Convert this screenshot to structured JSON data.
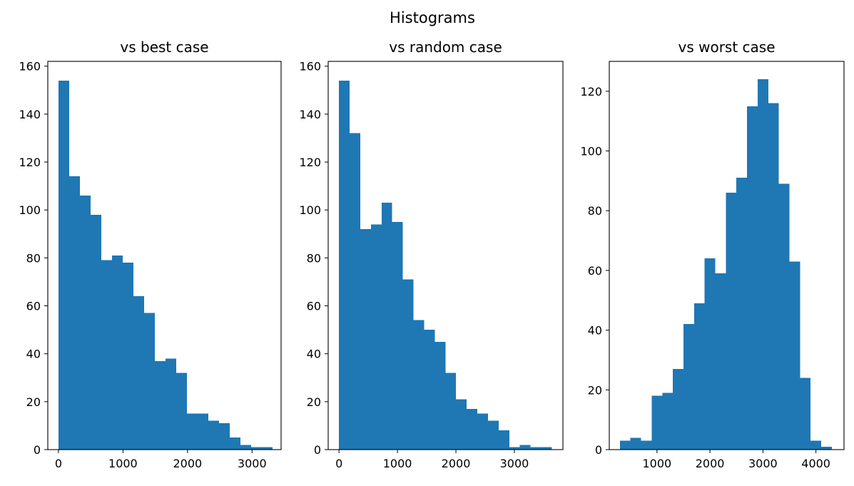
{
  "figure": {
    "title": "Histograms"
  },
  "colors": {
    "bar": "#1f77b4",
    "axis": "#000000",
    "background": "#ffffff"
  },
  "chart_data": [
    {
      "type": "bar",
      "title": "vs best case",
      "xlabel": "",
      "ylabel": "",
      "xlim": [
        -165,
        3450
      ],
      "ylim": [
        0,
        162
      ],
      "xticks": [
        0,
        1000,
        2000,
        3000
      ],
      "yticks": [
        0,
        20,
        40,
        60,
        80,
        100,
        120,
        140,
        160
      ],
      "grid": false,
      "bins": {
        "edges": [
          0,
          166,
          332,
          498,
          664,
          830,
          996,
          1162,
          1328,
          1494,
          1660,
          1826,
          1992,
          2158,
          2324,
          2490,
          2656,
          2822,
          2988,
          3154,
          3320
        ],
        "counts": [
          154,
          114,
          106,
          98,
          79,
          81,
          78,
          64,
          57,
          37,
          38,
          32,
          15,
          15,
          12,
          11,
          5,
          2,
          1,
          1
        ]
      }
    },
    {
      "type": "bar",
      "title": "vs random case",
      "xlabel": "",
      "ylabel": "",
      "xlim": [
        -185,
        3830
      ],
      "ylim": [
        0,
        162
      ],
      "xticks": [
        0,
        1000,
        2000,
        3000
      ],
      "yticks": [
        0,
        20,
        40,
        60,
        80,
        100,
        120,
        140,
        160
      ],
      "grid": false,
      "bins": {
        "edges": [
          0,
          182,
          364,
          546,
          728,
          910,
          1092,
          1274,
          1456,
          1638,
          1820,
          2002,
          2184,
          2366,
          2548,
          2730,
          2912,
          3094,
          3276,
          3458,
          3640
        ],
        "counts": [
          154,
          132,
          92,
          94,
          103,
          95,
          71,
          54,
          50,
          45,
          32,
          21,
          17,
          15,
          12,
          8,
          1,
          2,
          1,
          1
        ]
      }
    },
    {
      "type": "bar",
      "title": "vs worst case",
      "xlabel": "",
      "ylabel": "",
      "xlim": [
        100,
        4530
      ],
      "ylim": [
        0,
        130
      ],
      "xticks": [
        1000,
        2000,
        3000,
        4000
      ],
      "yticks": [
        0,
        20,
        40,
        60,
        80,
        100,
        120
      ],
      "grid": false,
      "bins": {
        "edges": [
          300,
          500,
          700,
          900,
          1100,
          1300,
          1500,
          1700,
          1900,
          2100,
          2300,
          2500,
          2700,
          2900,
          3100,
          3300,
          3500,
          3700,
          3900,
          4100,
          4300
        ],
        "counts": [
          3,
          4,
          3,
          18,
          19,
          27,
          42,
          49,
          64,
          59,
          86,
          91,
          115,
          124,
          116,
          89,
          63,
          24,
          3,
          1
        ]
      }
    }
  ]
}
